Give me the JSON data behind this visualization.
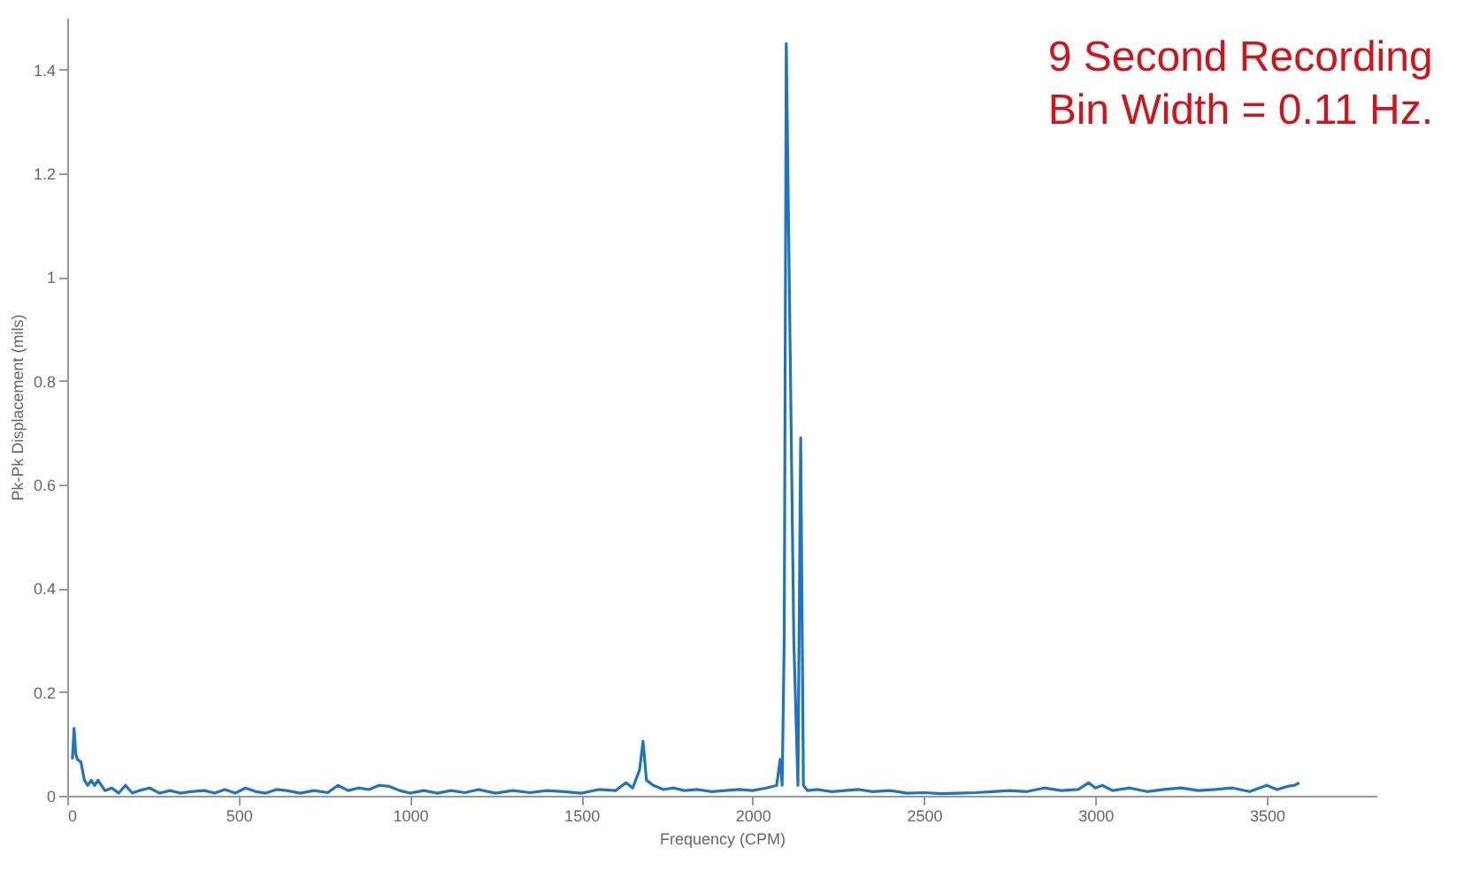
{
  "chart_data": {
    "type": "line",
    "xlabel": "Frequency (CPM)",
    "ylabel": "Pk-Pk Displacement (mils)",
    "annotations": [
      "9 Second Recording",
      "Bin Width = 0.11 Hz."
    ],
    "xlim": [
      0,
      3820
    ],
    "ylim": [
      0,
      1.5
    ],
    "xticks": [
      0,
      500,
      1000,
      1500,
      2000,
      2500,
      3000,
      3500
    ],
    "yticks": [
      0,
      0.2,
      0.4,
      0.6,
      0.8,
      1,
      1.2,
      1.4
    ],
    "grid": false,
    "marker": "none",
    "line_style": "solid",
    "series": [
      {
        "color": "#1f74c2",
        "x": [
          15,
          20,
          25,
          30,
          40,
          50,
          60,
          70,
          80,
          90,
          100,
          110,
          130,
          150,
          170,
          190,
          210,
          240,
          270,
          300,
          330,
          360,
          400,
          430,
          460,
          490,
          520,
          550,
          580,
          610,
          640,
          680,
          720,
          760,
          790,
          820,
          850,
          880,
          910,
          940,
          970,
          1000,
          1040,
          1080,
          1120,
          1160,
          1200,
          1250,
          1300,
          1350,
          1400,
          1450,
          1500,
          1550,
          1600,
          1630,
          1650,
          1670,
          1680,
          1690,
          1710,
          1740,
          1770,
          1800,
          1840,
          1880,
          1920,
          1960,
          2000,
          2040,
          2070,
          2080,
          2086,
          2092,
          2098,
          2120,
          2132,
          2140,
          2148,
          2160,
          2190,
          2230,
          2270,
          2310,
          2350,
          2400,
          2450,
          2500,
          2550,
          2600,
          2650,
          2700,
          2750,
          2800,
          2850,
          2900,
          2950,
          2980,
          3000,
          3020,
          3050,
          3100,
          3150,
          3200,
          3250,
          3300,
          3350,
          3400,
          3450,
          3500,
          3530,
          3560,
          3580,
          3595
        ],
        "values": [
          0.07,
          0.13,
          0.08,
          0.07,
          0.065,
          0.03,
          0.02,
          0.03,
          0.02,
          0.03,
          0.02,
          0.01,
          0.015,
          0.005,
          0.02,
          0.005,
          0.01,
          0.015,
          0.005,
          0.01,
          0.005,
          0.008,
          0.01,
          0.005,
          0.012,
          0.005,
          0.015,
          0.008,
          0.005,
          0.012,
          0.01,
          0.005,
          0.01,
          0.006,
          0.02,
          0.01,
          0.015,
          0.012,
          0.02,
          0.018,
          0.01,
          0.005,
          0.01,
          0.005,
          0.01,
          0.006,
          0.012,
          0.005,
          0.01,
          0.006,
          0.01,
          0.008,
          0.005,
          0.012,
          0.01,
          0.025,
          0.015,
          0.05,
          0.105,
          0.03,
          0.02,
          0.012,
          0.015,
          0.01,
          0.012,
          0.008,
          0.01,
          0.012,
          0.01,
          0.015,
          0.02,
          0.07,
          0.02,
          0.3,
          1.45,
          0.3,
          0.02,
          0.69,
          0.02,
          0.01,
          0.012,
          0.008,
          0.01,
          0.012,
          0.008,
          0.01,
          0.005,
          0.006,
          0.004,
          0.005,
          0.006,
          0.008,
          0.01,
          0.008,
          0.015,
          0.01,
          0.012,
          0.025,
          0.015,
          0.02,
          0.01,
          0.015,
          0.008,
          0.012,
          0.015,
          0.01,
          0.012,
          0.015,
          0.008,
          0.02,
          0.012,
          0.018,
          0.02,
          0.025
        ]
      }
    ]
  }
}
